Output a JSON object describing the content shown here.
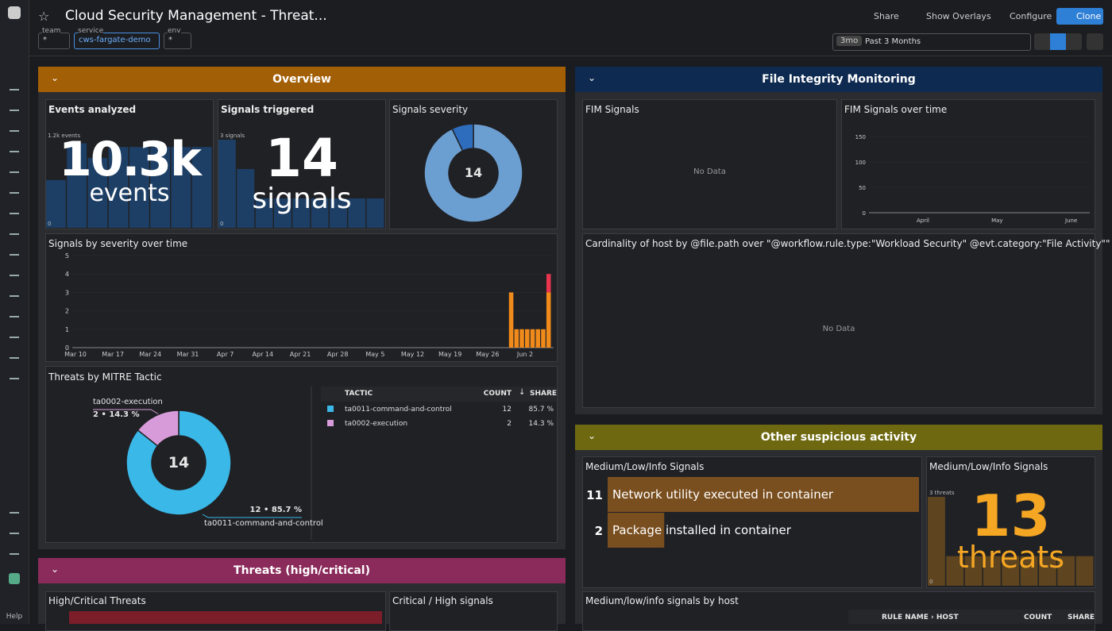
{
  "header": {
    "title": "Cloud Security Management - Threat...",
    "filters": [
      {
        "label": "team",
        "value": "*"
      },
      {
        "label": "service",
        "value": "cws-fargate-demo"
      },
      {
        "label": "env",
        "value": "*"
      }
    ],
    "buttons": [
      "Share",
      "Show Overlays",
      "Configure",
      "Clone"
    ],
    "time": {
      "badge": "3mo",
      "range": "Past 3 Months"
    }
  },
  "sidebar": {
    "help": "Help"
  },
  "overview": {
    "title": "Overview",
    "events": {
      "title": "Events analyzed",
      "value": "10.3k",
      "unit": "events",
      "yticks": [
        0,
        {
          "value": 1200,
          "label": "1.2k events"
        }
      ],
      "bars": [
        650,
        1150,
        950,
        1100,
        1100,
        1100,
        1100,
        1100
      ],
      "color": "#1d3f66"
    },
    "signals": {
      "title": "Signals triggered",
      "value": 14,
      "unit": "signals",
      "yticks": [
        0,
        {
          "value": 3,
          "label": "3 signals"
        }
      ],
      "bars": [
        3,
        2,
        1,
        1,
        1,
        1,
        1,
        1,
        1
      ],
      "color": "#1d3f66"
    },
    "severity": {
      "title": "Signals severity",
      "total": 14,
      "values": [
        13,
        1
      ],
      "colors": [
        "#6c9fd1",
        "#2e6cbd"
      ]
    },
    "over_time": {
      "title": "Signals by severity over time",
      "ylim": [
        0,
        5
      ],
      "yticks": [
        0,
        1,
        2,
        3,
        4,
        5
      ],
      "xticks": [
        "Mar 10",
        "Mar 17",
        "Mar 24",
        "Mar 31",
        "Apr 7",
        "Apr 14",
        "Apr 21",
        "Apr 28",
        "May 5",
        "May 12",
        "May 19",
        "May 26",
        "Jun 2"
      ],
      "x": [
        "May 30",
        "May 31",
        "Jun 1",
        "Jun 2",
        "Jun 3",
        "Jun 4",
        "Jun 5",
        "Jun 6"
      ],
      "series": [
        {
          "color": "#f08a1a",
          "values": [
            3,
            1,
            1,
            1,
            1,
            1,
            1,
            3
          ]
        },
        {
          "color": "#e8344e",
          "values": [
            0,
            0,
            0,
            0,
            0,
            0,
            0,
            1
          ]
        }
      ]
    },
    "mitre": {
      "title": "Threats by MITRE Tactic",
      "total": 14,
      "callouts": [
        {
          "name": "ta0002-execution",
          "text": "2 • 14.3 %"
        },
        {
          "name": "ta0011-command-and-control",
          "text": "12 • 85.7 %"
        }
      ],
      "table": {
        "header": [
          "TACTIC",
          "COUNT",
          "SHARE"
        ],
        "colors": [
          "#3ab8e8",
          "#d89bd9"
        ],
        "rows": [
          [
            "ta0011-command-and-control",
            12,
            "85.7 %"
          ],
          [
            "ta0002-execution",
            2,
            "14.3 %"
          ]
        ]
      }
    }
  },
  "fim": {
    "title": "File Integrity Monitoring",
    "signals": {
      "title": "FIM Signals",
      "empty": "No Data"
    },
    "over_time": {
      "title": "FIM Signals over time",
      "ylim": [
        0,
        150
      ],
      "yticks": [
        0,
        50,
        100,
        150
      ],
      "xticks": [
        "April",
        "May",
        "June"
      ]
    },
    "cardinality": {
      "title": "Cardinality of host by @file.path over \"@workflow.rule.type:\"Workload Security\" @evt.category:\"File Activity\"\"",
      "empty": "No Data"
    }
  },
  "other": {
    "title": "Other suspicious activity",
    "toplist": {
      "title": "Medium/Low/Info Signals",
      "color": "#7a4f1f",
      "rows": [
        {
          "value": 11,
          "label": "Network utility executed in container"
        },
        {
          "value": 2,
          "label": "Package installed in container"
        }
      ]
    },
    "threats": {
      "title": "Medium/Low/Info Signals",
      "value": 13,
      "unit": "threats",
      "yticks": [
        0,
        {
          "value": 3,
          "label": "3 threats"
        }
      ],
      "bars": [
        3,
        1,
        1,
        1,
        1,
        1,
        1,
        1,
        1
      ],
      "color": "#5e4520"
    },
    "by_host": {
      "title": "Medium/low/info signals by host",
      "header": [
        "RULE NAME › HOST",
        "COUNT",
        "SHARE"
      ]
    }
  },
  "threats": {
    "title": "Threats (high/critical)",
    "high": {
      "title": "High/Critical Threats"
    },
    "critical": {
      "title": "Critical / High signals"
    }
  }
}
